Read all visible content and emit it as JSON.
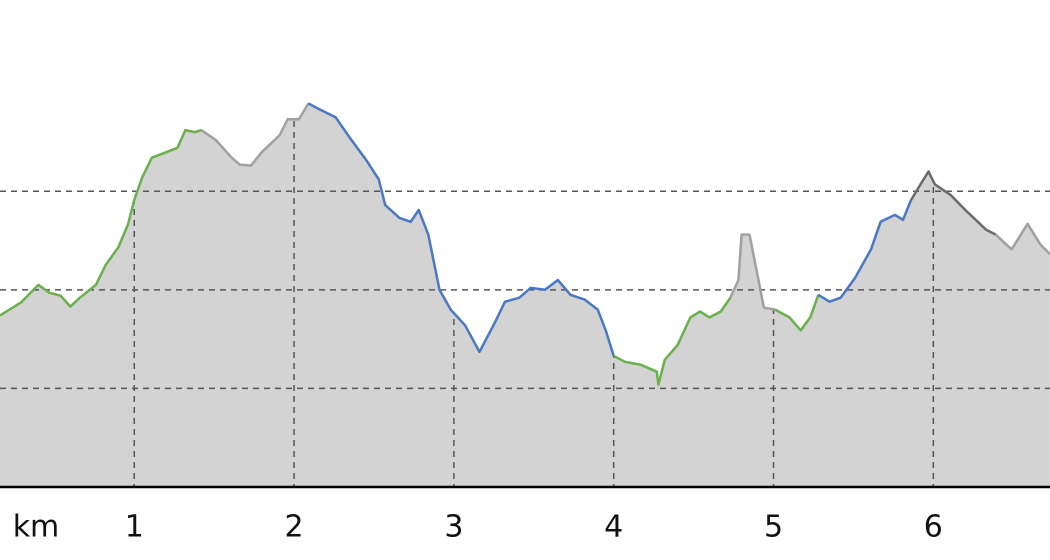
{
  "chart_data": {
    "type": "area",
    "x_label": "km",
    "xlim": [
      0.16,
      6.73
    ],
    "ylim": [
      0,
      4.94
    ],
    "xticks": [
      1,
      2,
      3,
      4,
      5,
      6
    ],
    "ygrid": [
      1,
      2,
      3
    ],
    "fill": "#d3d3d3",
    "series": [
      {
        "color": "#6ab04c",
        "x": [
          0.16,
          0.29,
          0.4,
          0.47,
          0.54,
          0.6,
          0.66,
          0.76,
          0.82,
          0.9,
          0.96,
          1.0,
          1.05,
          1.11,
          1.19,
          1.27,
          1.32,
          1.38,
          1.42
        ],
        "values": [
          1.74,
          1.87,
          2.05,
          1.97,
          1.94,
          1.83,
          1.92,
          2.05,
          2.25,
          2.43,
          2.66,
          2.91,
          3.14,
          3.34,
          3.39,
          3.44,
          3.62,
          3.6,
          3.62
        ]
      },
      {
        "color": "#a0a0a0",
        "x": [
          1.42,
          1.51,
          1.61,
          1.66,
          1.73,
          1.8,
          1.91,
          1.96,
          2.03,
          2.09
        ],
        "values": [
          3.62,
          3.52,
          3.34,
          3.27,
          3.26,
          3.4,
          3.57,
          3.73,
          3.73,
          3.89
        ]
      },
      {
        "color": "#4a78c2",
        "x": [
          2.09,
          2.16,
          2.26,
          2.35,
          2.45,
          2.53,
          2.57,
          2.66,
          2.73,
          2.78,
          2.84,
          2.91,
          2.98,
          3.07,
          3.16,
          3.26,
          3.32,
          3.41,
          3.48,
          3.57,
          3.65,
          3.73,
          3.82,
          3.9,
          3.95,
          4.0
        ],
        "values": [
          3.89,
          3.83,
          3.75,
          3.54,
          3.32,
          3.12,
          2.86,
          2.73,
          2.69,
          2.81,
          2.56,
          2.0,
          1.8,
          1.64,
          1.37,
          1.68,
          1.88,
          1.92,
          2.02,
          2.0,
          2.1,
          1.95,
          1.9,
          1.8,
          1.59,
          1.33
        ]
      },
      {
        "color": "#6ab04c",
        "x": [
          4.0,
          4.07,
          4.17,
          4.27,
          4.28,
          4.32,
          4.4,
          4.48,
          4.54,
          4.6,
          4.67,
          4.73
        ],
        "values": [
          1.33,
          1.27,
          1.24,
          1.17,
          1.04,
          1.29,
          1.44,
          1.72,
          1.78,
          1.72,
          1.78,
          1.92
        ]
      },
      {
        "color": "#a0a0a0",
        "x": [
          4.73,
          4.78,
          4.8,
          4.85,
          4.9,
          4.94,
          5.01
        ],
        "values": [
          1.92,
          2.1,
          2.56,
          2.56,
          2.15,
          1.82,
          1.8
        ]
      },
      {
        "color": "#6ab04c",
        "x": [
          5.01,
          5.1,
          5.17,
          5.23,
          5.28
        ],
        "values": [
          1.8,
          1.72,
          1.59,
          1.72,
          1.95
        ]
      },
      {
        "color": "#4a78c2",
        "x": [
          5.28,
          5.35,
          5.42,
          5.51,
          5.61,
          5.67,
          5.76,
          5.81,
          5.86
        ],
        "values": [
          1.95,
          1.88,
          1.92,
          2.12,
          2.41,
          2.69,
          2.76,
          2.71,
          2.91
        ]
      },
      {
        "color": "#6a6a6a",
        "x": [
          5.86,
          5.92,
          5.97,
          6.01,
          6.11,
          6.2,
          6.33,
          6.39
        ],
        "values": [
          2.91,
          3.07,
          3.2,
          3.07,
          2.96,
          2.81,
          2.61,
          2.56
        ]
      },
      {
        "color": "#a0a0a0",
        "x": [
          6.39,
          6.49,
          6.59,
          6.67,
          6.73
        ],
        "values": [
          2.56,
          2.41,
          2.67,
          2.46,
          2.36
        ]
      }
    ]
  }
}
